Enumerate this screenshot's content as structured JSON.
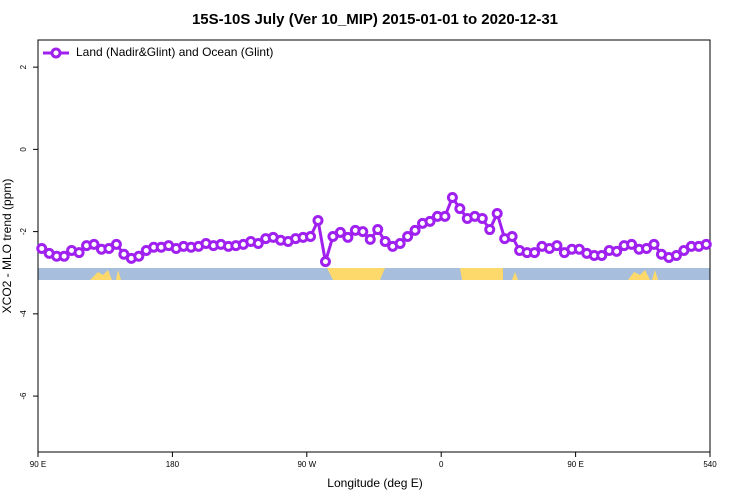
{
  "chart_data": {
    "type": "line",
    "title": "15S-10S July (Ver 10_MIP)   2015-01-01 to 2020-12-31",
    "x_label": "Longitude (deg E)",
    "y_label": "XCO2 - MLO trend (ppm)",
    "x": [
      92.5,
      97.5,
      102.5,
      107.5,
      112.5,
      117.5,
      122.5,
      127.5,
      132.5,
      137.5,
      142.5,
      147.5,
      152.5,
      157.5,
      162.5,
      167.5,
      172.5,
      177.5,
      182.5,
      187.5,
      192.5,
      197.5,
      202.5,
      207.5,
      212.5,
      217.5,
      222.5,
      227.5,
      232.5,
      237.5,
      242.5,
      247.5,
      252.5,
      257.5,
      262.5,
      267.5,
      272.5,
      277.5,
      282.5,
      287.5,
      292.5,
      297.5,
      302.5,
      307.5,
      312.5,
      317.5,
      322.5,
      327.5,
      332.5,
      337.5,
      342.5,
      347.5,
      352.5,
      357.5,
      362.5,
      367.5,
      372.5,
      377.5,
      382.5,
      387.5,
      392.5,
      397.5,
      402.5,
      407.5,
      412.5,
      417.5,
      422.5,
      427.5,
      432.5,
      437.5,
      442.5,
      447.5,
      452.5,
      457.5,
      462.5,
      467.5,
      472.5,
      477.5,
      482.5,
      487.5,
      492.5,
      497.5,
      502.5,
      507.5,
      512.5,
      517.5,
      522.5,
      527.5,
      532.5,
      537.5
    ],
    "series": [
      {
        "name": "Land (Nadir&Glint) and Ocean (Glint)",
        "color": "#a020f0",
        "values": [
          -2.41,
          -2.53,
          -2.6,
          -2.6,
          -2.46,
          -2.51,
          -2.34,
          -2.31,
          -2.43,
          -2.41,
          -2.31,
          -2.55,
          -2.65,
          -2.6,
          -2.46,
          -2.38,
          -2.38,
          -2.34,
          -2.41,
          -2.36,
          -2.38,
          -2.36,
          -2.29,
          -2.34,
          -2.31,
          -2.36,
          -2.34,
          -2.31,
          -2.24,
          -2.29,
          -2.17,
          -2.14,
          -2.21,
          -2.24,
          -2.17,
          -2.14,
          -2.12,
          -1.73,
          -2.73,
          -2.12,
          -2.02,
          -2.14,
          -1.97,
          -2.0,
          -2.19,
          -1.95,
          -2.24,
          -2.36,
          -2.29,
          -2.12,
          -1.97,
          -1.8,
          -1.75,
          -1.63,
          -1.63,
          -1.17,
          -1.44,
          -1.68,
          -1.63,
          -1.68,
          -1.95,
          -1.56,
          -2.17,
          -2.12,
          -2.46,
          -2.51,
          -2.51,
          -2.36,
          -2.41,
          -2.34,
          -2.51,
          -2.43,
          -2.43,
          -2.53,
          -2.58,
          -2.58,
          -2.46,
          -2.48,
          -2.34,
          -2.31,
          -2.43,
          -2.41,
          -2.31,
          -2.55,
          -2.63,
          -2.58,
          -2.46,
          -2.36,
          -2.36,
          -2.31
        ]
      }
    ],
    "xlim": [
      90,
      540
    ],
    "ylim": [
      -7.36,
      2.66
    ],
    "xticks": [
      {
        "value": 90,
        "label": "90 E"
      },
      180,
      {
        "value": 270,
        "label": "90 W"
      },
      {
        "value": 360,
        "label": "0"
      },
      {
        "value": 450,
        "label": "90 E"
      },
      540
    ],
    "yticks": [
      -6,
      -4,
      -2,
      0,
      2
    ],
    "legend": "top-left"
  }
}
